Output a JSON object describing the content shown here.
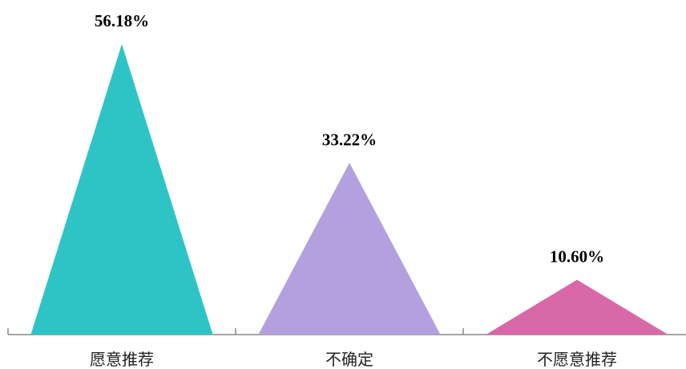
{
  "chart_data": {
    "type": "triangle-bar",
    "categories": [
      "愿意推荐",
      "不确定",
      "不愿意推荐"
    ],
    "values": [
      56.18,
      33.22,
      10.6
    ],
    "value_labels": [
      "56.18%",
      "33.22%",
      "10.60%"
    ],
    "colors": [
      "#2ec4c6",
      "#b4a0de",
      "#d968a8"
    ]
  }
}
